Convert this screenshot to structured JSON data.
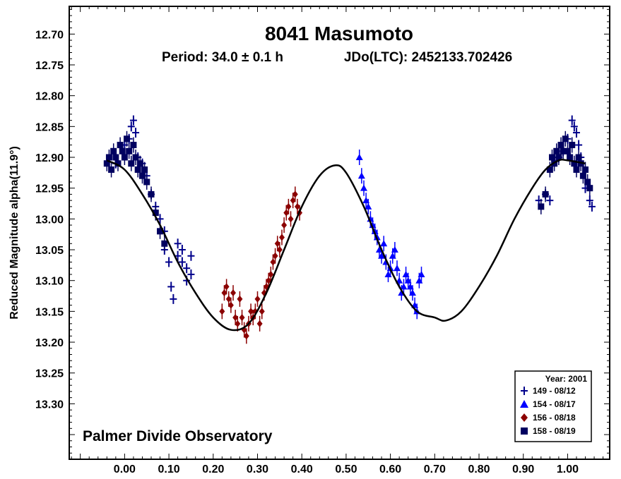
{
  "chart_data": {
    "type": "scatter",
    "title": "8041 Masumoto",
    "subtitle_period": "Period: 34.0 ± 0.1 h",
    "subtitle_jd": "JDo(LTC): 2452133.702426",
    "ylabel": "Reduced Magnitude alpha(11.9°)",
    "xlabel": "",
    "xlim": [
      -0.125,
      1.095
    ],
    "ylim": [
      12.655,
      13.39
    ],
    "y_inverted": true,
    "grid": false,
    "x_ticks": [
      "0.00",
      "0.10",
      "0.20",
      "0.30",
      "0.40",
      "0.50",
      "0.60",
      "0.70",
      "0.80",
      "0.90",
      "1.00"
    ],
    "y_ticks": [
      "12.70",
      "12.75",
      "12.80",
      "12.85",
      "12.90",
      "12.95",
      "13.00",
      "13.05",
      "13.10",
      "13.15",
      "13.20",
      "13.25",
      "13.30"
    ],
    "footer": "Palmer Divide Observatory",
    "legend": {
      "placement": "bottom-right",
      "title": "Year: 2001",
      "entries": [
        "149 - 08/12",
        "154 - 08/17",
        "156 - 08/18",
        "158 - 08/19"
      ]
    },
    "colors": {
      "149 - 08/12": "#00008B",
      "154 - 08/17": "#0000FF",
      "156 - 08/18": "#8B0000",
      "158 - 08/19": "#000060",
      "fit": "#000000"
    },
    "fit_curve": {
      "x": [
        -0.04,
        0.0,
        0.04,
        0.08,
        0.12,
        0.16,
        0.2,
        0.24,
        0.28,
        0.32,
        0.36,
        0.4,
        0.44,
        0.475,
        0.5,
        0.54,
        0.58,
        0.62,
        0.66,
        0.7,
        0.725,
        0.76,
        0.8,
        0.84,
        0.88,
        0.92,
        0.95,
        0.98,
        1.0,
        1.04
      ],
      "y": [
        12.905,
        12.92,
        12.96,
        13.01,
        13.07,
        13.12,
        13.16,
        13.18,
        13.17,
        13.12,
        13.05,
        12.98,
        12.93,
        12.913,
        12.925,
        12.98,
        13.05,
        13.11,
        13.15,
        13.16,
        13.165,
        13.15,
        13.11,
        13.06,
        13.0,
        12.95,
        12.92,
        12.905,
        12.905,
        12.91
      ]
    },
    "series": [
      {
        "name": "149 - 08/12",
        "marker": "cross",
        "x": [
          -0.02,
          0.0,
          0.01,
          0.015,
          0.02,
          0.025,
          0.03,
          0.04,
          0.05,
          0.06,
          0.07,
          0.08,
          0.09,
          0.09,
          0.1,
          0.105,
          0.11,
          0.12,
          0.12,
          0.13,
          0.13,
          0.14,
          0.14,
          0.15,
          0.15,
          0.935,
          0.95,
          0.96,
          0.98,
          0.99,
          1.0,
          1.01,
          1.015,
          1.02,
          1.025,
          1.03,
          1.04,
          1.05,
          1.055
        ],
        "y": [
          12.91,
          12.88,
          12.87,
          12.85,
          12.84,
          12.86,
          12.9,
          12.91,
          12.93,
          12.96,
          12.98,
          13.0,
          13.02,
          13.05,
          13.07,
          13.11,
          13.13,
          13.06,
          13.04,
          13.05,
          13.07,
          13.08,
          13.1,
          13.06,
          13.09,
          12.97,
          12.96,
          12.97,
          12.9,
          12.89,
          12.87,
          12.84,
          12.85,
          12.86,
          12.88,
          12.9,
          12.95,
          12.97,
          12.98
        ]
      },
      {
        "name": "154 - 08/17",
        "marker": "triangle",
        "x": [
          0.53,
          0.535,
          0.54,
          0.545,
          0.55,
          0.555,
          0.56,
          0.565,
          0.57,
          0.575,
          0.58,
          0.585,
          0.59,
          0.595,
          0.6,
          0.605,
          0.61,
          0.615,
          0.62,
          0.625,
          0.63,
          0.635,
          0.64,
          0.645,
          0.65,
          0.655,
          0.66,
          0.665,
          0.67
        ],
        "y": [
          12.9,
          12.93,
          12.95,
          12.97,
          12.98,
          13.0,
          13.01,
          13.02,
          13.03,
          13.05,
          13.06,
          13.04,
          13.07,
          13.09,
          13.08,
          13.06,
          13.05,
          13.08,
          13.1,
          13.12,
          13.11,
          13.09,
          13.1,
          13.11,
          13.12,
          13.14,
          13.15,
          13.1,
          13.09
        ]
      },
      {
        "name": "156 - 08/18",
        "marker": "diamond",
        "x": [
          0.22,
          0.225,
          0.23,
          0.235,
          0.24,
          0.245,
          0.25,
          0.255,
          0.26,
          0.265,
          0.27,
          0.275,
          0.28,
          0.285,
          0.29,
          0.295,
          0.3,
          0.305,
          0.31,
          0.315,
          0.32,
          0.325,
          0.33,
          0.335,
          0.34,
          0.345,
          0.35,
          0.355,
          0.36,
          0.365,
          0.37,
          0.375,
          0.38,
          0.385,
          0.39,
          0.395
        ],
        "y": [
          13.15,
          13.12,
          13.11,
          13.13,
          13.14,
          13.12,
          13.16,
          13.17,
          13.13,
          13.16,
          13.18,
          13.19,
          13.17,
          13.15,
          13.16,
          13.15,
          13.13,
          13.17,
          13.15,
          13.12,
          13.11,
          13.1,
          13.09,
          13.07,
          13.06,
          13.04,
          13.05,
          13.03,
          13.01,
          12.99,
          12.98,
          13.0,
          12.97,
          12.96,
          12.98,
          12.99
        ]
      },
      {
        "name": "158 - 08/19",
        "marker": "square",
        "x": [
          -0.04,
          -0.035,
          -0.03,
          -0.025,
          -0.02,
          -0.015,
          -0.01,
          -0.005,
          0.0,
          0.005,
          0.01,
          0.015,
          0.02,
          0.025,
          0.03,
          0.035,
          0.04,
          0.045,
          0.05,
          0.06,
          0.07,
          0.08,
          0.09,
          0.94,
          0.95,
          0.96,
          0.965,
          0.97,
          0.975,
          0.98,
          0.985,
          0.99,
          0.995,
          1.0,
          1.005,
          1.01,
          1.015,
          1.02,
          1.025,
          1.03,
          1.035,
          1.04,
          1.045,
          1.05
        ],
        "y": [
          12.91,
          12.9,
          12.92,
          12.89,
          12.9,
          12.91,
          12.88,
          12.89,
          12.9,
          12.87,
          12.89,
          12.91,
          12.88,
          12.9,
          12.92,
          12.91,
          12.93,
          12.92,
          12.94,
          12.96,
          12.99,
          13.02,
          13.04,
          12.98,
          12.96,
          12.92,
          12.9,
          12.91,
          12.89,
          12.9,
          12.88,
          12.89,
          12.87,
          12.89,
          12.9,
          12.88,
          12.91,
          12.92,
          12.9,
          12.91,
          12.93,
          12.92,
          12.94,
          12.95
        ]
      }
    ]
  }
}
